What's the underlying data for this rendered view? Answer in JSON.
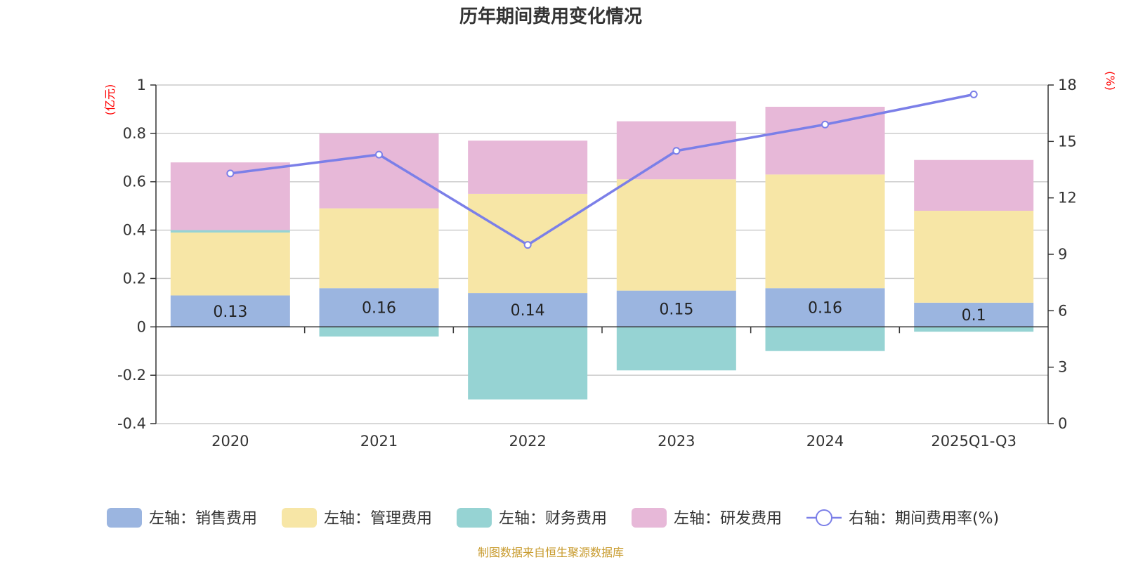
{
  "chart_data": {
    "type": "bar",
    "stacked": true,
    "title": "历年期间费用变化情况",
    "categories": [
      "2020",
      "2021",
      "2022",
      "2023",
      "2024",
      "2025Q1-Q3"
    ],
    "left_axis": {
      "unit": "(亿元)",
      "ylim": [
        -0.4,
        1
      ],
      "ticks": [
        "1",
        "0.8",
        "0.6",
        "0.4",
        "0.2",
        "0",
        "-0.2",
        "-0.4"
      ],
      "tick_values": [
        1,
        0.8,
        0.6,
        0.4,
        0.2,
        0,
        -0.2,
        -0.4
      ]
    },
    "right_axis": {
      "unit": "(%)",
      "ylim": [
        0,
        18
      ],
      "ticks": [
        "18",
        "15",
        "12",
        "9",
        "6",
        "3",
        "0"
      ],
      "tick_values": [
        18,
        15,
        12,
        9,
        6,
        3,
        0
      ]
    },
    "series": [
      {
        "name": "左轴：销售费用",
        "axis": "left",
        "color": "#9bb5e0",
        "values": [
          0.13,
          0.16,
          0.14,
          0.15,
          0.16,
          0.1
        ],
        "labels": [
          "0.13",
          "0.16",
          "0.14",
          "0.15",
          "0.16",
          "0.1"
        ]
      },
      {
        "name": "左轴：管理费用",
        "axis": "left",
        "color": "#f7e6a6",
        "values": [
          0.26,
          0.33,
          0.41,
          0.46,
          0.47,
          0.38
        ]
      },
      {
        "name": "左轴：财务费用",
        "axis": "left",
        "color": "#96d3d3",
        "values": [
          0.01,
          -0.04,
          -0.3,
          -0.18,
          -0.1,
          -0.02
        ]
      },
      {
        "name": "左轴：研发费用",
        "axis": "left",
        "color": "#e7b8d8",
        "values": [
          0.28,
          0.31,
          0.22,
          0.24,
          0.28,
          0.21
        ]
      },
      {
        "name": "右轴：期间费用率(%)",
        "axis": "right",
        "type": "line",
        "color": "#7b7fe8",
        "values": [
          13.3,
          14.3,
          9.5,
          14.5,
          15.9,
          17.5
        ]
      }
    ]
  },
  "source_note": "制图数据来自恒生聚源数据库"
}
